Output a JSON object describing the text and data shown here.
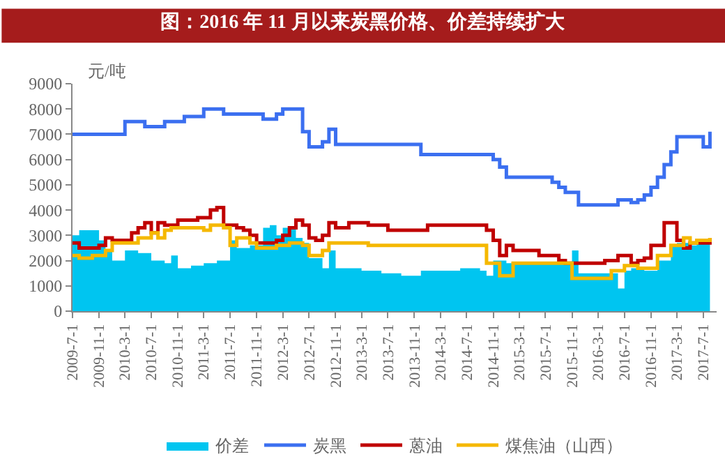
{
  "chart_data": {
    "type": "step",
    "title": "图：2016 年 11 月以来炭黑价格、价差持续扩大",
    "ylabel": "元/吨",
    "xlim": [
      "2009-07-01",
      "2017-09-01"
    ],
    "xticks": [
      {
        "value": "2009-07-01",
        "label": "2009-7-1"
      },
      {
        "value": "2009-11-01",
        "label": "2009-11-1"
      },
      {
        "value": "2010-03-01",
        "label": "2010-3-1"
      },
      {
        "value": "2010-07-01",
        "label": "2010-7-1"
      },
      {
        "value": "2010-11-01",
        "label": "2010-11-1"
      },
      {
        "value": "2011-03-01",
        "label": "2011-3-1"
      },
      {
        "value": "2011-07-01",
        "label": "2011-7-1"
      },
      {
        "value": "2011-11-01",
        "label": "2011-11-1"
      },
      {
        "value": "2012-03-01",
        "label": "2012-3-1"
      },
      {
        "value": "2012-07-01",
        "label": "2012-7-1"
      },
      {
        "value": "2012-11-01",
        "label": "2012-11-1"
      },
      {
        "value": "2013-03-01",
        "label": "2013-3-1"
      },
      {
        "value": "2013-07-01",
        "label": "2013-7-1"
      },
      {
        "value": "2013-11-01",
        "label": "2013-11-1"
      },
      {
        "value": "2014-03-01",
        "label": "2014-3-1"
      },
      {
        "value": "2014-07-01",
        "label": "2014-7-1"
      },
      {
        "value": "2014-11-01",
        "label": "2014-11-1"
      },
      {
        "value": "2015-03-01",
        "label": "2015-3-1"
      },
      {
        "value": "2015-07-01",
        "label": "2015-7-1"
      },
      {
        "value": "2015-11-01",
        "label": "2015-11-1"
      },
      {
        "value": "2016-03-01",
        "label": "2016-3-1"
      },
      {
        "value": "2016-07-01",
        "label": "2016-7-1"
      },
      {
        "value": "2016-11-01",
        "label": "2016-11-1"
      },
      {
        "value": "2017-03-01",
        "label": "2017-3-1"
      },
      {
        "value": "2017-07-01",
        "label": "2017-7-1"
      }
    ],
    "ylim": [
      0,
      9000
    ],
    "yticks": [
      0,
      1000,
      2000,
      3000,
      4000,
      5000,
      6000,
      7000,
      8000,
      9000
    ],
    "legend": "bottom",
    "marker": "none",
    "line_style": "solid",
    "series": [
      {
        "name": "价差",
        "type": "area",
        "color": "#00c5f0",
        "x": [
          "2009-07",
          "2009-08",
          "2009-11",
          "2009-12",
          "2010-01",
          "2010-03",
          "2010-05",
          "2010-07",
          "2010-09",
          "2010-10",
          "2010-11",
          "2011-01",
          "2011-03",
          "2011-05",
          "2011-07",
          "2011-08",
          "2011-10",
          "2011-12",
          "2012-01",
          "2012-02",
          "2012-03",
          "2012-05",
          "2012-06",
          "2012-07",
          "2012-09",
          "2012-10",
          "2012-11",
          "2013-03",
          "2013-06",
          "2013-09",
          "2013-12",
          "2014-03",
          "2014-06",
          "2014-09",
          "2014-10",
          "2014-11",
          "2015-01",
          "2015-03",
          "2015-06",
          "2015-09",
          "2015-11",
          "2015-12",
          "2016-01",
          "2016-03",
          "2016-06",
          "2016-07",
          "2016-08",
          "2016-10",
          "2016-12",
          "2017-02",
          "2017-03",
          "2017-05",
          "2017-06",
          "2017-08"
        ],
        "values": [
          3000,
          3200,
          2800,
          2400,
          2000,
          2400,
          2300,
          2000,
          1900,
          2200,
          1700,
          1800,
          1900,
          2000,
          2800,
          2500,
          2600,
          3300,
          3400,
          3000,
          3300,
          2900,
          2700,
          2100,
          1700,
          2400,
          1700,
          1600,
          1500,
          1400,
          1600,
          1600,
          1700,
          1600,
          1400,
          2000,
          1900,
          1900,
          1900,
          1900,
          2400,
          1500,
          1500,
          1500,
          900,
          1600,
          1700,
          1600,
          2000,
          2600,
          2700,
          2600,
          2700,
          1800
        ]
      },
      {
        "name": "炭黑",
        "color": "#3b6ff0",
        "x": [
          "2009-07",
          "2010-03",
          "2010-06",
          "2010-09",
          "2010-12",
          "2011-03",
          "2011-06",
          "2011-12",
          "2012-02",
          "2012-03",
          "2012-06",
          "2012-07",
          "2012-09",
          "2012-10",
          "2012-11",
          "2013-12",
          "2014-11",
          "2014-12",
          "2015-01",
          "2015-08",
          "2015-09",
          "2015-10",
          "2015-12",
          "2016-06",
          "2016-08",
          "2016-09",
          "2016-10",
          "2016-11",
          "2016-12",
          "2017-01",
          "2017-02",
          "2017-03",
          "2017-07",
          "2017-08"
        ],
        "values": [
          7000,
          7500,
          7300,
          7500,
          7700,
          8000,
          7800,
          7600,
          7800,
          8000,
          7100,
          6500,
          6700,
          7200,
          6600,
          6200,
          6000,
          5700,
          5300,
          5100,
          4900,
          4700,
          4200,
          4400,
          4300,
          4400,
          4600,
          4900,
          5300,
          5800,
          6300,
          6900,
          6500,
          7100
        ]
      },
      {
        "name": "蒽油",
        "color": "#c00000",
        "x": [
          "2009-07",
          "2009-08",
          "2009-11",
          "2009-12",
          "2010-01",
          "2010-04",
          "2010-05",
          "2010-06",
          "2010-07",
          "2010-08",
          "2010-09",
          "2010-11",
          "2011-02",
          "2011-04",
          "2011-05",
          "2011-06",
          "2011-08",
          "2011-09",
          "2011-10",
          "2011-11",
          "2012-02",
          "2012-03",
          "2012-04",
          "2012-05",
          "2012-06",
          "2012-07",
          "2012-08",
          "2012-09",
          "2012-10",
          "2012-11",
          "2013-01",
          "2013-04",
          "2013-07",
          "2014-01",
          "2014-10",
          "2014-11",
          "2014-12",
          "2015-01",
          "2015-02",
          "2015-06",
          "2015-09",
          "2015-10",
          "2016-04",
          "2016-06",
          "2016-08",
          "2016-09",
          "2016-10",
          "2016-11",
          "2017-01",
          "2017-03",
          "2017-04",
          "2017-05",
          "2017-08"
        ],
        "values": [
          2700,
          2500,
          2600,
          2900,
          2800,
          3100,
          3300,
          3500,
          3100,
          3500,
          3400,
          3600,
          3700,
          4000,
          4100,
          3400,
          3300,
          3200,
          3000,
          2700,
          2800,
          3000,
          3300,
          3600,
          3400,
          2900,
          2800,
          3000,
          3500,
          3300,
          3500,
          3400,
          3200,
          3400,
          3200,
          2800,
          2200,
          2600,
          2400,
          2200,
          2000,
          1900,
          2000,
          2200,
          1900,
          2000,
          2100,
          2600,
          3500,
          2800,
          2500,
          2700,
          2900
        ]
      },
      {
        "name": "煤焦油（山西）",
        "color": "#f5b800",
        "x": [
          "2009-07",
          "2009-08",
          "2009-10",
          "2009-12",
          "2010-01",
          "2010-05",
          "2010-07",
          "2010-08",
          "2010-09",
          "2010-10",
          "2011-03",
          "2011-04",
          "2011-06",
          "2011-07",
          "2011-08",
          "2011-10",
          "2011-11",
          "2012-02",
          "2012-04",
          "2012-06",
          "2012-07",
          "2012-09",
          "2012-10",
          "2013-04",
          "2014-10",
          "2014-12",
          "2015-02",
          "2015-11",
          "2016-05",
          "2016-07",
          "2016-09",
          "2016-12",
          "2017-02",
          "2017-04",
          "2017-05",
          "2017-06",
          "2017-08"
        ],
        "values": [
          2200,
          2100,
          2200,
          2400,
          2700,
          2900,
          3100,
          2900,
          3200,
          3300,
          3200,
          3400,
          3300,
          2600,
          2900,
          2700,
          2500,
          2600,
          2700,
          2600,
          2200,
          2400,
          2700,
          2600,
          1900,
          1400,
          1900,
          1300,
          1600,
          1800,
          1700,
          2200,
          2600,
          2900,
          2700,
          2800,
          2900
        ]
      }
    ]
  }
}
